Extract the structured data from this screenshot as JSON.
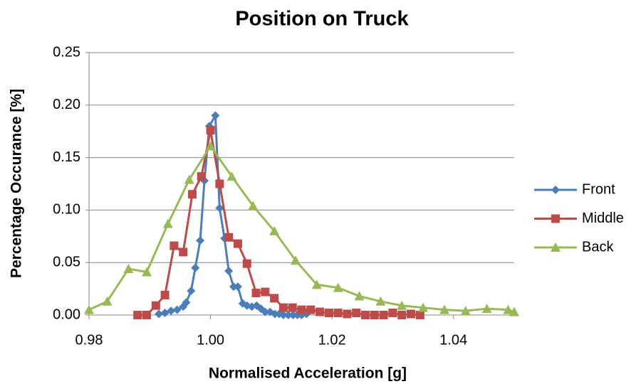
{
  "chart_data": {
    "type": "line",
    "title": "Position on Truck",
    "xlabel": "Normalised Acceleration [g]",
    "ylabel": "Percentage Occurance [%]",
    "xlim": [
      0.98,
      1.05
    ],
    "xticks": [
      0.98,
      {
        "value": 1.0,
        "label": "1.00"
      },
      1.02,
      1.04
    ],
    "ylim": [
      0,
      0.25
    ],
    "yticks": [
      {
        "value": 0,
        "label": "0.00"
      },
      0.05,
      {
        "value": 0.1,
        "label": "0.10"
      },
      0.15,
      {
        "value": 0.2,
        "label": "0.20"
      },
      0.25
    ],
    "grid": true,
    "legend": "right",
    "series": [
      {
        "name": "Front",
        "color": "#4a7ebb",
        "marker": "diamond",
        "x": [
          0.9915,
          0.9925,
          0.9935,
          0.9945,
          0.9955,
          0.996,
          0.9968,
          0.9975,
          0.9983,
          0.999,
          0.9998,
          1.0008,
          1.0015,
          1.0023,
          1.003,
          1.0038,
          1.0045,
          1.0053,
          1.006,
          1.0068,
          1.0076,
          1.0083,
          1.009,
          1.0098,
          1.0106,
          1.0113,
          1.012,
          1.0128,
          1.0136,
          1.0143,
          1.015,
          1.0158
        ],
        "values": [
          0.001,
          0.002,
          0.004,
          0.005,
          0.008,
          0.012,
          0.023,
          0.045,
          0.071,
          0.128,
          0.18,
          0.19,
          0.102,
          0.073,
          0.042,
          0.027,
          0.027,
          0.011,
          0.009,
          0.008,
          0.009,
          0.006,
          0.003,
          0.003,
          0.001,
          0.001,
          0,
          0,
          0,
          0,
          0,
          0.001
        ]
      },
      {
        "name": "Middle",
        "color": "#be4b48",
        "marker": "square",
        "x": [
          0.988,
          0.9895,
          0.991,
          0.9925,
          0.994,
          0.9955,
          0.997,
          0.9985,
          1.0,
          1.0015,
          1.003,
          1.0045,
          1.006,
          1.0075,
          1.009,
          1.0105,
          1.012,
          1.0135,
          1.015,
          1.0165,
          1.018,
          1.0195,
          1.021,
          1.0225,
          1.024,
          1.0255,
          1.027,
          1.0285,
          1.03,
          1.0315,
          1.033,
          1.0345
        ],
        "values": [
          0,
          0,
          0.009,
          0.019,
          0.066,
          0.06,
          0.115,
          0.132,
          0.176,
          0.125,
          0.074,
          0.068,
          0.049,
          0.021,
          0.022,
          0.016,
          0.007,
          0.007,
          0.005,
          0.005,
          0.003,
          0.002,
          0.002,
          0.001,
          0.002,
          0,
          0,
          0,
          0.002,
          0,
          0.001,
          0
        ]
      },
      {
        "name": "Back",
        "color": "#98b954",
        "marker": "triangle",
        "x": [
          0.98,
          0.983,
          0.9865,
          0.9895,
          0.993,
          0.9965,
          1.0,
          1.0035,
          1.007,
          1.0105,
          1.014,
          1.0175,
          1.021,
          1.0245,
          1.028,
          1.0315,
          1.035,
          1.0385,
          1.042,
          1.0455,
          1.049,
          1.05
        ],
        "values": [
          0.005,
          0.013,
          0.044,
          0.041,
          0.087,
          0.129,
          0.161,
          0.132,
          0.104,
          0.08,
          0.052,
          0.029,
          0.026,
          0.018,
          0.013,
          0.009,
          0.007,
          0.005,
          0.004,
          0.006,
          0.005,
          0.003
        ]
      }
    ]
  }
}
